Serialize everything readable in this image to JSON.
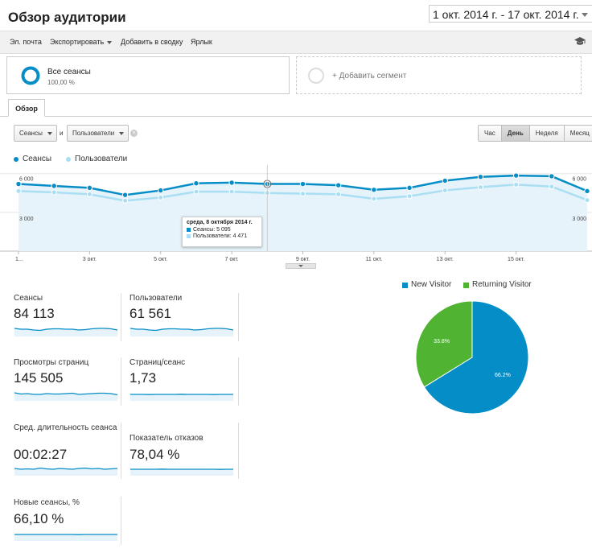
{
  "header": {
    "title": "Обзор аудитории",
    "date_range": "1 окт. 2014 г. - 17 окт. 2014 г."
  },
  "toolbar": {
    "email": "Эл. почта",
    "export": "Экспортировать",
    "add_to_dashboard": "Добавить в сводку",
    "shortcut": "Ярлык",
    "education_icon": "graduation-cap-icon"
  },
  "segments": {
    "all_sessions": {
      "title": "Все сеансы",
      "percent": "100,00 %"
    },
    "add_segment": "+ Добавить сегмент"
  },
  "tabs": {
    "overview": "Обзор"
  },
  "metric_select": {
    "primary": "Сеансы",
    "connector": "и",
    "secondary": "Пользователи"
  },
  "period_buttons": [
    "Час",
    "День",
    "Неделя",
    "Месяц"
  ],
  "period_active": "День",
  "colors": {
    "sessions": "#058dc7",
    "users": "#aadff3",
    "new_visitor": "#058dc7",
    "returning_visitor": "#50b432"
  },
  "chart_data": [
    {
      "type": "line",
      "series": [
        {
          "name": "Сеансы",
          "values": [
            5200,
            5050,
            4900,
            4350,
            4700,
            5250,
            5300,
            5200,
            5200,
            5100,
            4750,
            4900,
            5450,
            5750,
            5850,
            5800,
            4650
          ]
        },
        {
          "name": "Пользователи",
          "values": [
            4650,
            4550,
            4400,
            3900,
            4150,
            4600,
            4600,
            4500,
            4450,
            4400,
            4050,
            4250,
            4700,
            4950,
            5150,
            5000,
            3950
          ]
        }
      ],
      "x_tick_labels": [
        "1...",
        "3 окт.",
        "5 окт.",
        "7 окт.",
        "9 окт.",
        "11 окт.",
        "13 окт.",
        "15 окт."
      ],
      "y_tick_labels": [
        "6 000",
        "3 000"
      ],
      "ylim": [
        0,
        6000
      ],
      "tooltip": {
        "title": "среда, 8 октября 2014 г.",
        "sessions": "Сеансы: 5 095",
        "users": "Пользователи: 4 471"
      }
    },
    {
      "type": "pie",
      "series": [
        {
          "name": "New Visitor",
          "value": 66.2,
          "label": "66.2%"
        },
        {
          "name": "Returning Visitor",
          "value": 33.8,
          "label": "33.8%"
        }
      ]
    }
  ],
  "metrics": [
    {
      "label": "Сеансы",
      "value": "84 113"
    },
    {
      "label": "Пользователи",
      "value": "61 561"
    },
    {
      "label": "Просмотры страниц",
      "value": "145 505"
    },
    {
      "label": "Страниц/сеанс",
      "value": "1,73"
    },
    {
      "label": "Сред. длительность сеанса",
      "value": "00:02:27"
    },
    {
      "label": "Показатель отказов",
      "value": "78,04 %"
    },
    {
      "label": "Новые сеансы, %",
      "value": "66,10 %"
    }
  ]
}
